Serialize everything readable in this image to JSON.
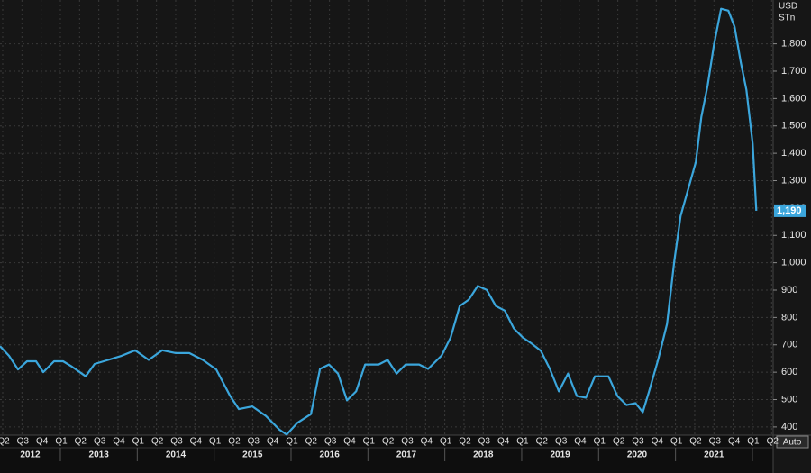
{
  "chart_data": {
    "type": "line",
    "units": [
      "USD",
      "STn"
    ],
    "auto_button": "Auto",
    "color": "#3ba6dc",
    "grid": true,
    "x": [
      2012.215,
      2012.332,
      2012.449,
      2012.567,
      2012.684,
      2012.778,
      2012.918,
      2013.035,
      2013.153,
      2013.329,
      2013.446,
      2013.622,
      2013.797,
      2013.973,
      2014.149,
      2014.325,
      2014.501,
      2014.677,
      2014.853,
      2015.028,
      2015.204,
      2015.322,
      2015.497,
      2015.673,
      2015.849,
      2015.943,
      2016.084,
      2016.259,
      2016.377,
      2016.494,
      2016.611,
      2016.728,
      2016.846,
      2016.963,
      2017.139,
      2017.256,
      2017.373,
      2017.49,
      2017.666,
      2017.783,
      2017.959,
      2018.076,
      2018.194,
      2018.311,
      2018.428,
      2018.545,
      2018.663,
      2018.78,
      2018.897,
      2019.014,
      2019.132,
      2019.249,
      2019.366,
      2019.483,
      2019.601,
      2019.718,
      2019.835,
      2019.952,
      2020.128,
      2020.245,
      2020.363,
      2020.48,
      2020.574,
      2020.656,
      2020.773,
      2020.89,
      2020.984,
      2021.066,
      2021.183,
      2021.265,
      2021.336,
      2021.418,
      2021.5,
      2021.593,
      2021.687,
      2021.769,
      2021.851,
      2021.922,
      2022.004,
      2022.051
    ],
    "values": [
      695,
      660,
      610,
      640,
      640,
      600,
      640,
      640,
      620,
      585,
      630,
      645,
      660,
      680,
      645,
      680,
      670,
      670,
      645,
      610,
      515,
      465,
      475,
      440,
      390,
      372,
      415,
      447,
      612,
      628,
      595,
      497,
      530,
      628,
      628,
      645,
      595,
      628,
      628,
      612,
      661,
      727,
      842,
      865,
      915,
      901,
      842,
      825,
      760,
      727,
      704,
      678,
      612,
      530,
      595,
      513,
      507,
      585,
      585,
      513,
      480,
      487,
      454,
      530,
      645,
      776,
      1006,
      1171,
      1286,
      1368,
      1533,
      1648,
      1796,
      1928,
      1921,
      1862,
      1730,
      1632,
      1434,
      1190
    ],
    "value_labels": [
      null,
      null,
      null,
      null,
      null,
      null,
      null,
      null,
      null,
      null,
      null,
      null,
      null,
      null,
      null,
      null,
      null,
      null,
      null,
      null,
      null,
      null,
      null,
      null,
      null,
      null,
      null,
      null,
      null,
      null,
      null,
      null,
      null,
      null,
      null,
      null,
      null,
      null,
      null,
      null,
      null,
      null,
      null,
      null,
      null,
      null,
      null,
      null,
      null,
      null,
      null,
      null,
      null,
      null,
      null,
      null,
      null,
      null,
      null,
      null,
      null,
      null,
      null,
      null,
      null,
      null,
      null,
      null,
      null,
      null,
      null,
      null,
      null,
      null,
      null,
      null,
      null,
      null,
      null,
      "1,190"
    ],
    "xlim": [
      2012.215,
      2022.27
    ],
    "ylim": [
      370,
      1960
    ],
    "yticks": [
      400,
      500,
      600,
      700,
      800,
      900,
      {
        "value": 1000,
        "label": "1,000"
      },
      {
        "value": 1100,
        "label": "1,100"
      },
      {
        "value": 1200,
        "label": "1,200"
      },
      {
        "value": 1300,
        "label": "1,300"
      },
      {
        "value": 1400,
        "label": "1,400"
      },
      {
        "value": 1500,
        "label": "1,500"
      },
      {
        "value": 1600,
        "label": "1,600"
      },
      {
        "value": 1700,
        "label": "1,700"
      },
      {
        "value": 1800,
        "label": "1,800"
      }
    ],
    "xticks": [
      {
        "value": 2012.25,
        "label": "Q2"
      },
      {
        "value": 2012.5,
        "label": "Q3"
      },
      {
        "value": 2012.75,
        "label": "Q4"
      },
      {
        "value": 2013.0,
        "label": "Q1"
      },
      {
        "value": 2013.25,
        "label": "Q2"
      },
      {
        "value": 2013.5,
        "label": "Q3"
      },
      {
        "value": 2013.75,
        "label": "Q4"
      },
      {
        "value": 2014.0,
        "label": "Q1"
      },
      {
        "value": 2014.25,
        "label": "Q2"
      },
      {
        "value": 2014.5,
        "label": "Q3"
      },
      {
        "value": 2014.75,
        "label": "Q4"
      },
      {
        "value": 2015.0,
        "label": "Q1"
      },
      {
        "value": 2015.25,
        "label": "Q2"
      },
      {
        "value": 2015.5,
        "label": "Q3"
      },
      {
        "value": 2015.75,
        "label": "Q4"
      },
      {
        "value": 2016.0,
        "label": "Q1"
      },
      {
        "value": 2016.25,
        "label": "Q2"
      },
      {
        "value": 2016.5,
        "label": "Q3"
      },
      {
        "value": 2016.75,
        "label": "Q4"
      },
      {
        "value": 2017.0,
        "label": "Q1"
      },
      {
        "value": 2017.25,
        "label": "Q2"
      },
      {
        "value": 2017.5,
        "label": "Q3"
      },
      {
        "value": 2017.75,
        "label": "Q4"
      },
      {
        "value": 2018.0,
        "label": "Q1"
      },
      {
        "value": 2018.25,
        "label": "Q2"
      },
      {
        "value": 2018.5,
        "label": "Q3"
      },
      {
        "value": 2018.75,
        "label": "Q4"
      },
      {
        "value": 2019.0,
        "label": "Q1"
      },
      {
        "value": 2019.25,
        "label": "Q2"
      },
      {
        "value": 2019.5,
        "label": "Q3"
      },
      {
        "value": 2019.75,
        "label": "Q4"
      },
      {
        "value": 2020.0,
        "label": "Q1"
      },
      {
        "value": 2020.25,
        "label": "Q2"
      },
      {
        "value": 2020.5,
        "label": "Q3"
      },
      {
        "value": 2020.75,
        "label": "Q4"
      },
      {
        "value": 2021.0,
        "label": "Q1"
      },
      {
        "value": 2021.25,
        "label": "Q2"
      },
      {
        "value": 2021.5,
        "label": "Q3"
      },
      {
        "value": 2021.75,
        "label": "Q4"
      },
      {
        "value": 2022.0,
        "label": "Q1"
      },
      {
        "value": 2022.25,
        "label": "Q2"
      }
    ],
    "years": [
      2012,
      2013,
      2014,
      2015,
      2016,
      2017,
      2018,
      2019,
      2020,
      2021
    ]
  }
}
